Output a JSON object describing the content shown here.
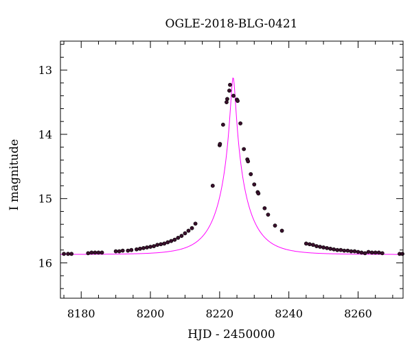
{
  "chart_data": {
    "type": "scatter",
    "title": "OGLE-2018-BLG-0421",
    "xlabel": "HJD - 2450000",
    "ylabel": "I magnitude",
    "xlim": [
      8174,
      8273
    ],
    "ylim": [
      16.55,
      12.55
    ],
    "y_inverted": true,
    "x_ticks": [
      8180,
      8200,
      8220,
      8240,
      8260
    ],
    "x_tick_labels": [
      "8180",
      "8200",
      "8220",
      "8240",
      "8260"
    ],
    "y_ticks": [
      13,
      14,
      15,
      16
    ],
    "y_tick_labels": [
      "13",
      "14",
      "15",
      "16"
    ],
    "grid": false,
    "series": [
      {
        "kind": "points",
        "color": "#3a0f2c",
        "x": [
          8175.0,
          8176.2,
          8177.2,
          8182.0,
          8183.0,
          8184.0,
          8185.0,
          8186.0,
          8190.0,
          8191.0,
          8192.0,
          8193.5,
          8194.5,
          8196.0,
          8197.0,
          8198.0,
          8199.0,
          8200.0,
          8201.0,
          8202.0,
          8203.0,
          8204.0,
          8205.0,
          8206.0,
          8207.0,
          8208.0,
          8209.0,
          8210.0,
          8211.0,
          8212.0,
          8213.0,
          8218.0,
          8220.0,
          8220.1,
          8221.0,
          8222.0,
          8222.2,
          8222.8,
          8223.0,
          8224.0,
          8225.0,
          8225.2,
          8226.0,
          8227.0,
          8228.0,
          8228.2,
          8229.0,
          8230.0,
          8231.0,
          8231.2,
          8233.0,
          8234.0,
          8236.0,
          8238.0,
          8245.0,
          8246.0,
          8247.0,
          8248.0,
          8249.0,
          8250.0,
          8251.0,
          8252.0,
          8253.0,
          8254.0,
          8255.0,
          8256.0,
          8257.0,
          8258.0,
          8259.0,
          8260.0,
          8261.0,
          8262.0,
          8263.0,
          8264.0,
          8265.0,
          8266.0,
          8267.0,
          8272.0,
          8272.8
        ],
        "y": [
          15.86,
          15.86,
          15.86,
          15.85,
          15.84,
          15.84,
          15.84,
          15.84,
          15.82,
          15.82,
          15.81,
          15.81,
          15.8,
          15.79,
          15.78,
          15.77,
          15.76,
          15.75,
          15.74,
          15.72,
          15.71,
          15.7,
          15.68,
          15.66,
          15.64,
          15.61,
          15.58,
          15.54,
          15.5,
          15.46,
          15.39,
          14.8,
          14.17,
          14.15,
          13.85,
          13.5,
          13.45,
          13.32,
          13.23,
          13.4,
          13.46,
          13.48,
          13.83,
          14.23,
          14.39,
          14.42,
          14.62,
          14.78,
          14.9,
          14.92,
          15.15,
          15.25,
          15.42,
          15.5,
          15.7,
          15.71,
          15.72,
          15.74,
          15.75,
          15.76,
          15.77,
          15.78,
          15.79,
          15.8,
          15.8,
          15.81,
          15.81,
          15.82,
          15.82,
          15.83,
          15.84,
          15.85,
          15.83,
          15.84,
          15.84,
          15.84,
          15.85,
          15.86,
          15.86
        ]
      },
      {
        "kind": "model-line",
        "color": "#ff00ff",
        "t0": 8223.9,
        "tE": 8.3,
        "u0": 0.0795,
        "baseline": 15.87
      }
    ]
  }
}
